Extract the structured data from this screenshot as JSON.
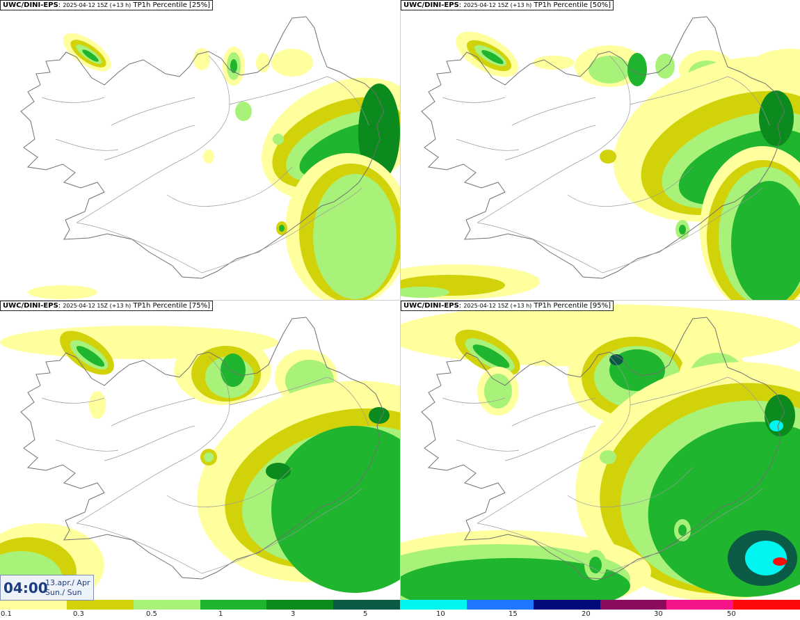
{
  "panels": [
    {
      "model": "UWC/DINI-EPS",
      "run": "2025-04-12 15Z (+13 h)",
      "field": "TP1h Percentile [25%]",
      "percentile": 25
    },
    {
      "model": "UWC/DINI-EPS",
      "run": "2025-04-12 15Z (+13 h)",
      "field": "TP1h Percentile [50%]",
      "percentile": 50
    },
    {
      "model": "UWC/DINI-EPS",
      "run": "2025-04-12 15Z (+13 h)",
      "field": "TP1h Percentile [75%]",
      "percentile": 75
    },
    {
      "model": "UWC/DINI-EPS",
      "run": "2025-04-12 15Z (+13 h)",
      "field": "TP1h Percentile [95%]",
      "percentile": 95
    }
  ],
  "valid_time": {
    "time": "04:00",
    "date_line": "13.apr./ Apr",
    "day_line": "Sun./ Sun"
  },
  "legend": {
    "labels": [
      "0.1",
      "0.3",
      "0.5",
      "1",
      "3",
      "5",
      "10",
      "15",
      "20",
      "30",
      "50"
    ],
    "colors": [
      "#ffff9e",
      "#d2d20a",
      "#a9f27a",
      "#1fb52e",
      "#0b8a1e",
      "#0a5a45",
      "#00f5f0",
      "#1e78ff",
      "#03087a",
      "#8a0a5e",
      "#f5148a",
      "#ff0a0a"
    ]
  },
  "colors": {
    "lightyellow": "#ffff9e",
    "olive": "#d2d20a",
    "lightgreen": "#a9f27a",
    "green": "#1fb52e",
    "darkgreen": "#0b8a1e",
    "teal": "#0a5a45",
    "cyan": "#00f5f0",
    "red": "#ff0a0a"
  }
}
